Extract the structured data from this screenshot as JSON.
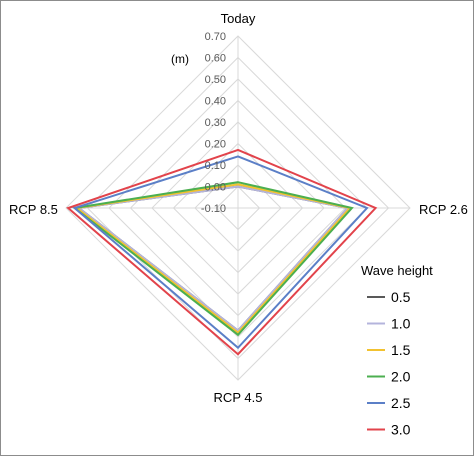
{
  "chart_data": {
    "type": "radar",
    "title": "",
    "unit_label": "(m)",
    "categories": [
      "Today",
      "RCP 2.6",
      "RCP 4.5",
      "RCP 8.5"
    ],
    "rlim": [
      -0.1,
      0.7
    ],
    "ticks": [
      "0.70",
      "0.60",
      "0.50",
      "0.40",
      "0.30",
      "0.20",
      "0.10",
      "0.00",
      "-0.10"
    ],
    "tick_values": [
      0.7,
      0.6,
      0.5,
      0.4,
      0.3,
      0.2,
      0.1,
      0.0,
      -0.1
    ],
    "grid": true,
    "legend": {
      "title": "Wave height",
      "position": "bottom-right"
    },
    "series": [
      {
        "name": "0.5",
        "color": "#595959",
        "values": [
          0.0,
          0.41,
          0.47,
          0.64
        ]
      },
      {
        "name": "1.0",
        "color": "#b4b4dc",
        "values": [
          0.0,
          0.41,
          0.47,
          0.64
        ]
      },
      {
        "name": "1.5",
        "color": "#f2c230",
        "values": [
          0.01,
          0.42,
          0.48,
          0.65
        ]
      },
      {
        "name": "2.0",
        "color": "#4caf50",
        "values": [
          0.02,
          0.43,
          0.49,
          0.66
        ]
      },
      {
        "name": "2.5",
        "color": "#5b7fc7",
        "values": [
          0.14,
          0.5,
          0.55,
          0.66
        ]
      },
      {
        "name": "3.0",
        "color": "#e2434b",
        "values": [
          0.17,
          0.54,
          0.58,
          0.69
        ]
      }
    ]
  }
}
